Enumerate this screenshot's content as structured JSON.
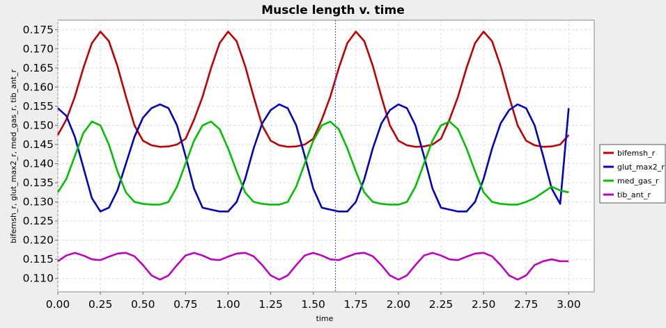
{
  "chart_data": {
    "type": "line",
    "title": "Muscle length v. time",
    "xlabel": "time",
    "ylabel": "bifemsh_r, glut_max2_r, med_gas_r, tib_ant_r",
    "xlim": [
      0.0,
      3.15
    ],
    "ylim": [
      0.1065,
      0.1775
    ],
    "xticks": [
      "0.00",
      "0.25",
      "0.50",
      "0.75",
      "1.00",
      "1.25",
      "1.50",
      "1.75",
      "2.00",
      "2.25",
      "2.50",
      "2.75",
      "3.00"
    ],
    "yticks": [
      "0.110",
      "0.115",
      "0.120",
      "0.125",
      "0.130",
      "0.135",
      "0.140",
      "0.145",
      "0.150",
      "0.155",
      "0.160",
      "0.165",
      "0.170",
      "0.175"
    ],
    "grid": true,
    "legend_position": "right",
    "crosshair_x": 1.63,
    "x": [
      0.0,
      0.05,
      0.1,
      0.15,
      0.2,
      0.25,
      0.3,
      0.35,
      0.4,
      0.45,
      0.5,
      0.55,
      0.6,
      0.65,
      0.7,
      0.75,
      0.8,
      0.85,
      0.9,
      0.95,
      1.0,
      1.05,
      1.1,
      1.15,
      1.2,
      1.25,
      1.3,
      1.35,
      1.4,
      1.45,
      1.5,
      1.55,
      1.6,
      1.65,
      1.7,
      1.75,
      1.8,
      1.85,
      1.9,
      1.95,
      2.0,
      2.05,
      2.1,
      2.15,
      2.2,
      2.25,
      2.3,
      2.35,
      2.4,
      2.45,
      2.5,
      2.55,
      2.6,
      2.65,
      2.7,
      2.75,
      2.8,
      2.85,
      2.9,
      2.95,
      3.0
    ],
    "series": [
      {
        "name": "bifemsh_r",
        "color": "#c00000",
        "values": [
          0.1475,
          0.1515,
          0.1575,
          0.165,
          0.1715,
          0.1745,
          0.172,
          0.1655,
          0.1575,
          0.15,
          0.146,
          0.1448,
          0.1444,
          0.1445,
          0.145,
          0.1465,
          0.1515,
          0.1575,
          0.165,
          0.1715,
          0.1745,
          0.172,
          0.1655,
          0.1575,
          0.15,
          0.146,
          0.1448,
          0.1444,
          0.1445,
          0.145,
          0.1465,
          0.1515,
          0.1575,
          0.165,
          0.1715,
          0.1745,
          0.172,
          0.1655,
          0.1575,
          0.15,
          0.146,
          0.1448,
          0.1444,
          0.1445,
          0.145,
          0.1465,
          0.1515,
          0.1575,
          0.165,
          0.1715,
          0.1745,
          0.172,
          0.1655,
          0.1575,
          0.15,
          0.146,
          0.1448,
          0.1444,
          0.1445,
          0.145,
          0.1475
        ]
      },
      {
        "name": "glut_max2_r",
        "color": "#0000c0",
        "values": [
          0.1545,
          0.1525,
          0.147,
          0.139,
          0.131,
          0.1275,
          0.1285,
          0.133,
          0.14,
          0.147,
          0.152,
          0.1545,
          0.1555,
          0.1545,
          0.15,
          0.142,
          0.1335,
          0.1285,
          0.128,
          0.1275,
          0.1275,
          0.13,
          0.136,
          0.144,
          0.1505,
          0.154,
          0.1555,
          0.1545,
          0.15,
          0.142,
          0.1335,
          0.1285,
          0.128,
          0.1275,
          0.1275,
          0.13,
          0.136,
          0.144,
          0.1505,
          0.154,
          0.1555,
          0.1545,
          0.15,
          0.142,
          0.1335,
          0.1285,
          0.128,
          0.1275,
          0.1275,
          0.13,
          0.136,
          0.144,
          0.1505,
          0.154,
          0.1555,
          0.1545,
          0.15,
          0.142,
          0.1335,
          0.1295,
          0.1545
        ]
      },
      {
        "name": "med_gas_r",
        "color": "#00c000",
        "values": [
          0.1325,
          0.136,
          0.142,
          0.148,
          0.151,
          0.15,
          0.145,
          0.138,
          0.1325,
          0.13,
          0.1295,
          0.1293,
          0.1293,
          0.13,
          0.134,
          0.14,
          0.146,
          0.15,
          0.151,
          0.149,
          0.144,
          0.138,
          0.1325,
          0.13,
          0.1295,
          0.1293,
          0.1293,
          0.13,
          0.134,
          0.14,
          0.146,
          0.15,
          0.151,
          0.149,
          0.144,
          0.138,
          0.1325,
          0.13,
          0.1295,
          0.1293,
          0.1293,
          0.13,
          0.134,
          0.14,
          0.146,
          0.15,
          0.151,
          0.149,
          0.144,
          0.138,
          0.1325,
          0.13,
          0.1295,
          0.1293,
          0.1293,
          0.13,
          0.131,
          0.1325,
          0.134,
          0.133,
          0.1325
        ]
      },
      {
        "name": "tib_ant_r",
        "color": "#c000c0",
        "values": [
          0.1145,
          0.116,
          0.1167,
          0.116,
          0.115,
          0.1148,
          0.1157,
          0.1165,
          0.1167,
          0.1158,
          0.1135,
          0.1108,
          0.1097,
          0.1108,
          0.1135,
          0.116,
          0.1167,
          0.116,
          0.115,
          0.1148,
          0.1157,
          0.1165,
          0.1167,
          0.1158,
          0.1135,
          0.1108,
          0.1097,
          0.1108,
          0.1135,
          0.116,
          0.1167,
          0.116,
          0.115,
          0.1148,
          0.1157,
          0.1165,
          0.1167,
          0.1158,
          0.1135,
          0.1108,
          0.1097,
          0.1108,
          0.1135,
          0.116,
          0.1167,
          0.116,
          0.115,
          0.1148,
          0.1157,
          0.1165,
          0.1167,
          0.1158,
          0.1135,
          0.1108,
          0.1097,
          0.1108,
          0.1135,
          0.1145,
          0.115,
          0.1145,
          0.1145
        ]
      }
    ]
  }
}
